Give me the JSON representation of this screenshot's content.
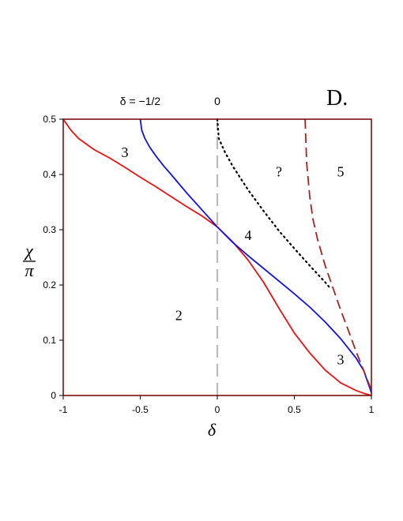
{
  "chart_data": {
    "type": "line",
    "panel_label": "D.",
    "xlabel": "δ",
    "ylabel_num": "χ",
    "ylabel_den": "π",
    "xlim": [
      -1,
      1
    ],
    "ylim": [
      0,
      0.5
    ],
    "xticks": [
      -1,
      -0.5,
      0,
      0.5,
      1
    ],
    "xtick_labels": [
      "-1",
      "-0.5",
      "0",
      "0.5",
      "1"
    ],
    "yticks": [
      0,
      0.1,
      0.2,
      0.3,
      0.4,
      0.5
    ],
    "ytick_labels": [
      "0",
      "0.1",
      "0.2",
      "0.3",
      "0.4",
      "0.5"
    ],
    "top_labels": [
      {
        "text": "δ = −1/2",
        "x": -0.5
      },
      {
        "text": "0",
        "x": 0
      }
    ],
    "region_labels": [
      {
        "text": "3",
        "x": -0.6,
        "y": 0.44
      },
      {
        "text": "?",
        "x": 0.4,
        "y": 0.405
      },
      {
        "text": "5",
        "x": 0.8,
        "y": 0.405
      },
      {
        "text": "4",
        "x": 0.2,
        "y": 0.29
      },
      {
        "text": "2",
        "x": -0.25,
        "y": 0.145
      },
      {
        "text": "3",
        "x": 0.8,
        "y": 0.065
      }
    ],
    "frame_color": "#7b1010",
    "series": [
      {
        "color": "#ee1111",
        "style": "solid",
        "x": [
          -1,
          -0.95,
          -0.9,
          -0.8,
          -0.7,
          -0.6,
          -0.5,
          -0.4,
          -0.3,
          -0.2,
          -0.1,
          0,
          0.1,
          0.2,
          0.3,
          0.4,
          0.5,
          0.6,
          0.7,
          0.8,
          0.9,
          0.95,
          1
        ],
        "y": [
          0.5,
          0.48,
          0.465,
          0.445,
          0.43,
          0.413,
          0.395,
          0.378,
          0.36,
          0.342,
          0.325,
          0.305,
          0.278,
          0.245,
          0.205,
          0.158,
          0.113,
          0.077,
          0.046,
          0.023,
          0.009,
          0.004,
          0
        ]
      },
      {
        "color": "#1111ee",
        "style": "solid",
        "x": [
          -0.5,
          -0.49,
          -0.47,
          -0.44,
          -0.4,
          -0.35,
          -0.3,
          -0.2,
          -0.1,
          0,
          0.1,
          0.2,
          0.3,
          0.4,
          0.5,
          0.6,
          0.7,
          0.8,
          0.9,
          0.95,
          1
        ],
        "y": [
          0.5,
          0.48,
          0.465,
          0.45,
          0.434,
          0.416,
          0.4,
          0.367,
          0.336,
          0.305,
          0.277,
          0.253,
          0.23,
          0.207,
          0.184,
          0.16,
          0.133,
          0.103,
          0.068,
          0.045,
          0.005
        ]
      },
      {
        "color": "#bbbbbb",
        "style": "dashed-gray",
        "x": [
          0,
          0
        ],
        "y": [
          0,
          0.5
        ]
      },
      {
        "color": "#000000",
        "style": "dotted",
        "x": [
          0,
          0.01,
          0.05,
          0.1,
          0.2,
          0.3,
          0.4,
          0.5,
          0.6,
          0.7,
          0.73
        ],
        "y": [
          0.5,
          0.465,
          0.44,
          0.415,
          0.372,
          0.334,
          0.298,
          0.266,
          0.235,
          0.205,
          0.195
        ]
      },
      {
        "color": "#aa2222",
        "style": "dashed",
        "x": [
          0.57,
          0.58,
          0.6,
          0.62,
          0.65,
          0.7,
          0.75,
          0.8,
          0.85,
          0.9,
          0.95,
          1
        ],
        "y": [
          0.5,
          0.42,
          0.36,
          0.32,
          0.283,
          0.235,
          0.195,
          0.155,
          0.118,
          0.08,
          0.045,
          0.01
        ]
      }
    ]
  }
}
